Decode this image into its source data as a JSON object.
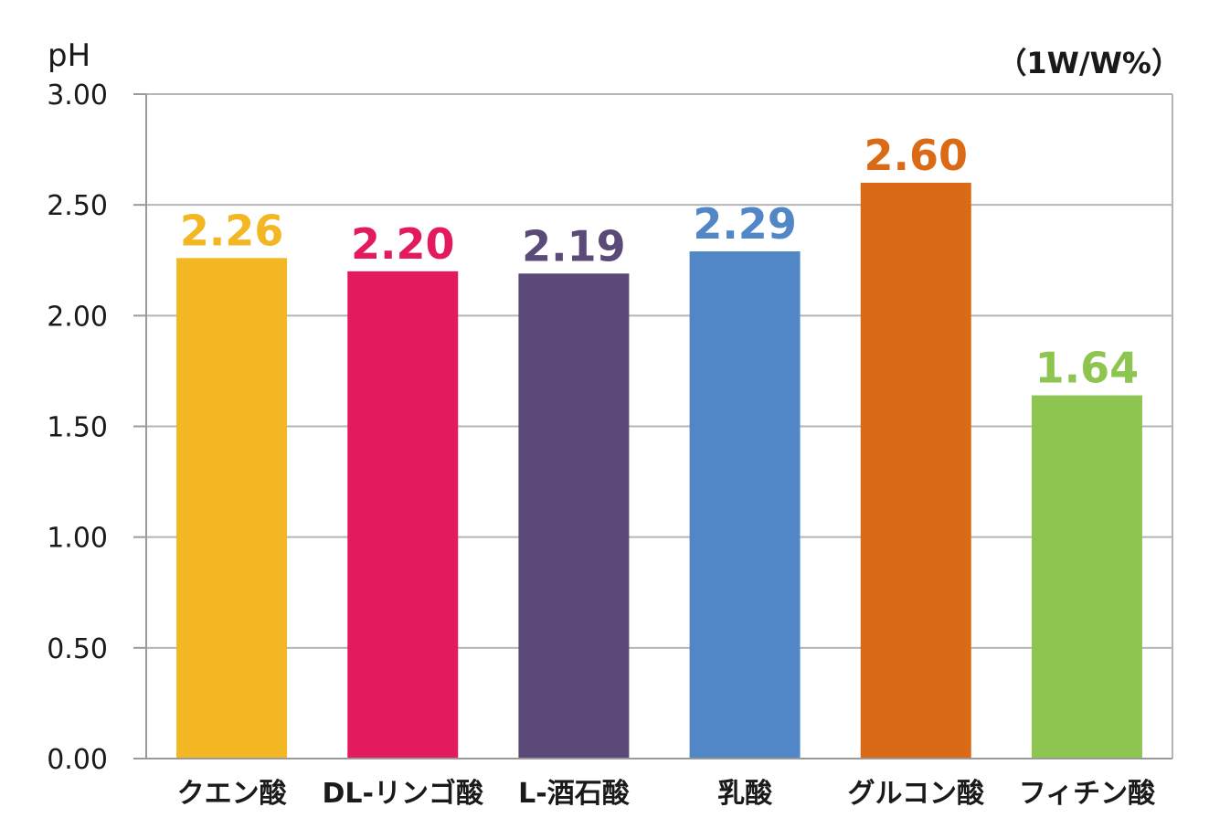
{
  "chart_data": {
    "type": "bar",
    "ylabel": "pH",
    "unit_note": "（1W/W%）",
    "ylim": [
      0,
      3.0
    ],
    "yticks": [
      "0.00",
      "0.50",
      "1.00",
      "1.50",
      "2.00",
      "2.50",
      "3.00"
    ],
    "categories": [
      "クエン酸",
      "DL-リンゴ酸",
      "L-酒石酸",
      "乳酸",
      "グルコン酸",
      "フィチン酸"
    ],
    "values": [
      2.26,
      2.2,
      2.19,
      2.29,
      2.6,
      1.64
    ],
    "value_labels": [
      "2.26",
      "2.20",
      "2.19",
      "2.29",
      "2.60",
      "1.64"
    ],
    "colors": [
      "#f2b722",
      "#e31b5e",
      "#5b4a78",
      "#5187c6",
      "#db6a17",
      "#8ec450"
    ],
    "grid": true,
    "legend": "none"
  }
}
